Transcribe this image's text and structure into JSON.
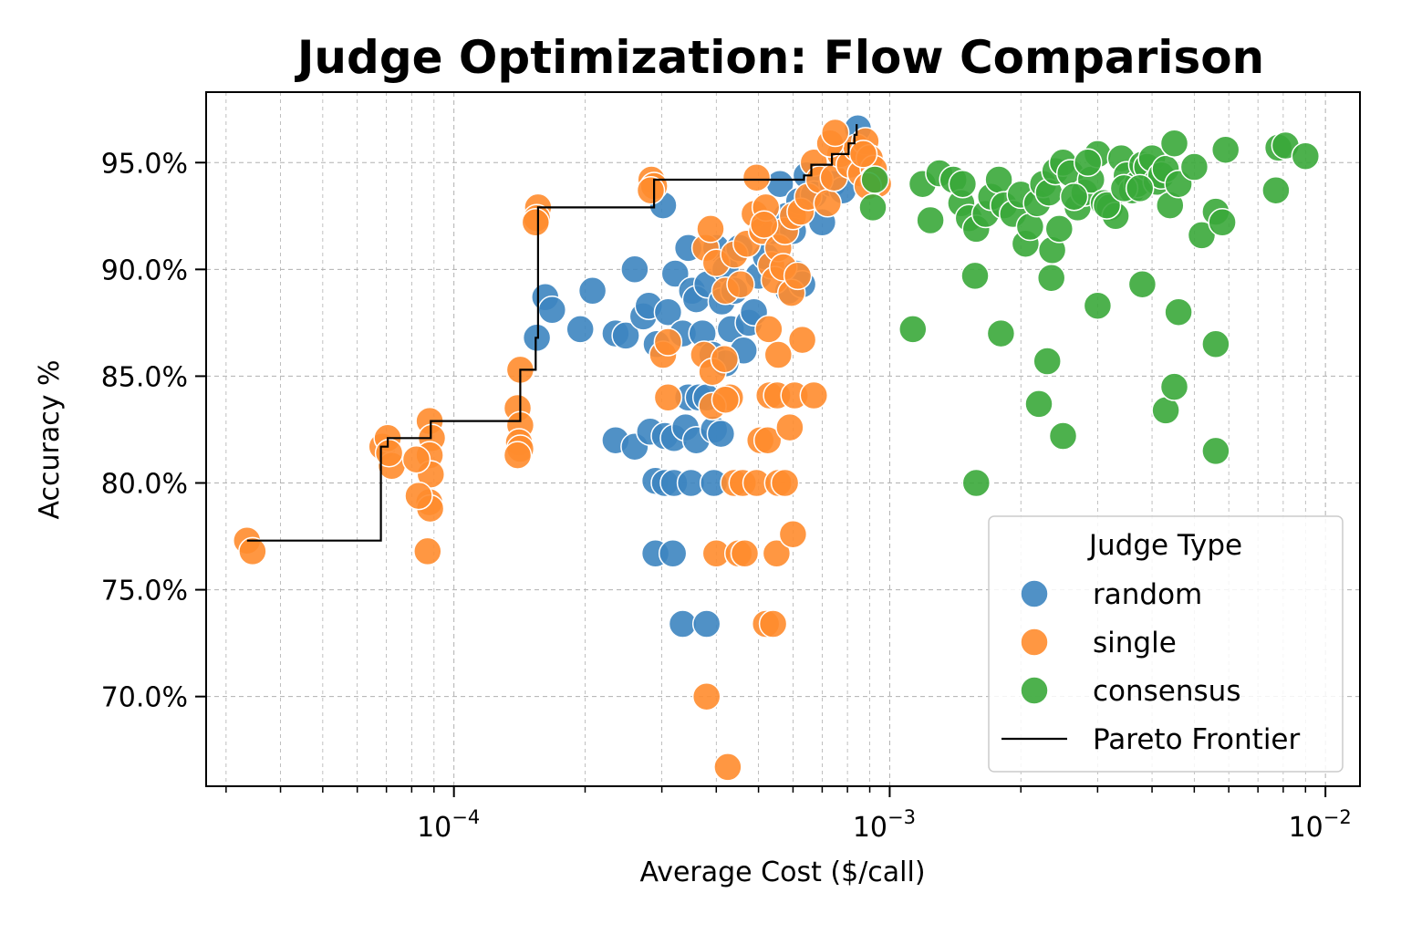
{
  "chart_data": {
    "type": "scatter",
    "title": "Judge Optimization: Flow Comparison",
    "xlabel": "Average Cost ($/call)",
    "ylabel": "Accuracy %",
    "xscale": "log",
    "xlim": [
      2.7e-05,
      0.012
    ],
    "ylim": [
      65.8,
      98.3
    ],
    "grid": true,
    "x_ticks": [
      {
        "value": 0.0001,
        "base": "10",
        "exp": "−4"
      },
      {
        "value": 0.001,
        "base": "10",
        "exp": "−3"
      },
      {
        "value": 0.01,
        "base": "10",
        "exp": "−2"
      }
    ],
    "y_ticks": [
      {
        "value": 70,
        "label": "70.0%"
      },
      {
        "value": 75,
        "label": "75.0%"
      },
      {
        "value": 80,
        "label": "80.0%"
      },
      {
        "value": 85,
        "label": "85.0%"
      },
      {
        "value": 90,
        "label": "90.0%"
      },
      {
        "value": 95,
        "label": "95.0%"
      }
    ],
    "legend": {
      "title": "Judge Type",
      "position": "lower-right",
      "entries": [
        {
          "label": "random",
          "color": "#3d85c0",
          "kind": "marker"
        },
        {
          "label": "single",
          "color": "#ff8c2e",
          "kind": "marker"
        },
        {
          "label": "consensus",
          "color": "#3aa83a",
          "kind": "marker"
        },
        {
          "label": "Pareto Frontier",
          "color": "#000000",
          "kind": "line"
        }
      ]
    },
    "series": [
      {
        "name": "random",
        "color": "#3d85c0",
        "points": [
          [
            0.000162,
            88.7
          ],
          [
            0.000168,
            88.1
          ],
          [
            0.000155,
            86.8
          ],
          [
            0.000195,
            87.2
          ],
          [
            0.000208,
            89.0
          ],
          [
            0.000235,
            87.0
          ],
          [
            0.000248,
            86.9
          ],
          [
            0.00026,
            90.0
          ],
          [
            0.000272,
            87.8
          ],
          [
            0.00028,
            88.3
          ],
          [
            0.000292,
            86.5
          ],
          [
            0.000302,
            93.0
          ],
          [
            0.00031,
            88.0
          ],
          [
            0.000322,
            89.8
          ],
          [
            0.000335,
            87.0
          ],
          [
            0.000345,
            91.0
          ],
          [
            0.000352,
            89.0
          ],
          [
            0.00036,
            88.6
          ],
          [
            0.000372,
            87.0
          ],
          [
            0.000382,
            89.3
          ],
          [
            0.000392,
            86.0
          ],
          [
            0.0004,
            91.0
          ],
          [
            0.000412,
            88.5
          ],
          [
            0.00042,
            90.0
          ],
          [
            0.000432,
            87.2
          ],
          [
            0.00044,
            89.0
          ],
          [
            0.000452,
            91.0
          ],
          [
            0.000462,
            86.2
          ],
          [
            0.000475,
            87.5
          ],
          [
            0.000488,
            88.0
          ],
          [
            0.0005,
            89.7
          ],
          [
            0.00052,
            90.6
          ],
          [
            0.00054,
            91.8
          ],
          [
            0.00056,
            94.0
          ],
          [
            0.00058,
            92.5
          ],
          [
            0.0006,
            91.8
          ],
          [
            0.00062,
            93.2
          ],
          [
            0.000645,
            94.4
          ],
          [
            0.00067,
            93.5
          ],
          [
            0.0007,
            92.2
          ],
          [
            0.00074,
            94.0
          ],
          [
            0.00078,
            93.7
          ],
          [
            0.00082,
            95.6
          ],
          [
            0.000845,
            96.6
          ],
          [
            0.00087,
            94.8
          ],
          [
            0.000585,
            89.0
          ],
          [
            0.00061,
            89.8
          ],
          [
            0.00063,
            89.3
          ],
          [
            0.000235,
            82.0
          ],
          [
            0.00026,
            81.7
          ],
          [
            0.000282,
            82.4
          ],
          [
            0.000305,
            82.2
          ],
          [
            0.00032,
            82.1
          ],
          [
            0.00034,
            82.6
          ],
          [
            0.00036,
            82.0
          ],
          [
            0.000395,
            82.5
          ],
          [
            0.00041,
            82.3
          ],
          [
            0.000345,
            84.0
          ],
          [
            0.000365,
            84.0
          ],
          [
            0.00038,
            84.0
          ],
          [
            0.00029,
            80.1
          ],
          [
            0.000305,
            80.0
          ],
          [
            0.00032,
            80.0
          ],
          [
            0.00035,
            80.0
          ],
          [
            0.000395,
            80.0
          ],
          [
            0.00029,
            76.7
          ],
          [
            0.000318,
            76.7
          ],
          [
            0.000335,
            73.4
          ],
          [
            0.00038,
            73.4
          ],
          [
            0.00042,
            85.6
          ]
        ]
      },
      {
        "name": "single",
        "color": "#ff8c2e",
        "points": [
          [
            3.35e-05,
            77.3
          ],
          [
            3.45e-05,
            76.8
          ],
          [
            6.85e-05,
            81.7
          ],
          [
            7.05e-05,
            82.1
          ],
          [
            7.2e-05,
            80.8
          ],
          [
            7.1e-05,
            81.4
          ],
          [
            8.8e-05,
            82.9
          ],
          [
            8.9e-05,
            82.1
          ],
          [
            8.8e-05,
            81.3
          ],
          [
            8.85e-05,
            80.4
          ],
          [
            8.78e-05,
            79.1
          ],
          [
            8.82e-05,
            78.8
          ],
          [
            8.7e-05,
            76.8
          ],
          [
            8.2e-05,
            81.1
          ],
          [
            8.3e-05,
            79.4
          ],
          [
            0.000142,
            85.3
          ],
          [
            0.00014,
            83.5
          ],
          [
            0.000142,
            82.7
          ],
          [
            0.000141,
            81.9
          ],
          [
            0.000142,
            81.6
          ],
          [
            0.00014,
            81.3
          ],
          [
            0.000156,
            92.9
          ],
          [
            0.000155,
            92.4
          ],
          [
            0.000154,
            92.2
          ],
          [
            0.000284,
            94.2
          ],
          [
            0.000288,
            93.9
          ],
          [
            0.000283,
            93.7
          ],
          [
            0.000378,
            91.0
          ],
          [
            0.000388,
            91.9
          ],
          [
            0.0004,
            90.3
          ],
          [
            0.00042,
            89.0
          ],
          [
            0.00044,
            90.7
          ],
          [
            0.000455,
            89.3
          ],
          [
            0.00047,
            91.2
          ],
          [
            0.00049,
            92.6
          ],
          [
            0.00051,
            91.8
          ],
          [
            0.00052,
            92.9
          ],
          [
            0.000535,
            90.2
          ],
          [
            0.000555,
            91.0
          ],
          [
            0.000575,
            91.8
          ],
          [
            0.0006,
            92.5
          ],
          [
            0.000625,
            92.7
          ],
          [
            0.00065,
            93.4
          ],
          [
            0.00067,
            95.0
          ],
          [
            0.00069,
            94.2
          ],
          [
            0.00072,
            93.1
          ],
          [
            0.000745,
            94.3
          ],
          [
            0.00077,
            95.4
          ],
          [
            0.00081,
            94.9
          ],
          [
            0.00084,
            95.7
          ],
          [
            0.00086,
            94.5
          ],
          [
            0.00088,
            96.0
          ],
          [
            0.0009,
            95.2
          ],
          [
            0.00092,
            94.7
          ],
          [
            0.00094,
            94.0
          ],
          [
            0.000918,
            94.2
          ],
          [
            0.00087,
            95.4
          ],
          [
            0.00073,
            95.9
          ],
          [
            0.00075,
            96.4
          ],
          [
            0.00089,
            93.9
          ],
          [
            0.000495,
            94.3
          ],
          [
            0.000515,
            92.1
          ],
          [
            0.000545,
            89.5
          ],
          [
            0.00057,
            90.1
          ],
          [
            0.000595,
            88.9
          ],
          [
            0.000615,
            89.7
          ],
          [
            0.000302,
            86.0
          ],
          [
            0.00031,
            86.6
          ],
          [
            0.000375,
            86.0
          ],
          [
            0.000392,
            85.2
          ],
          [
            0.000418,
            85.8
          ],
          [
            0.00043,
            84.0
          ],
          [
            0.000528,
            87.2
          ],
          [
            0.000555,
            86.0
          ],
          [
            0.00063,
            86.7
          ],
          [
            0.00031,
            84.0
          ],
          [
            0.000392,
            83.6
          ],
          [
            0.00042,
            83.9
          ],
          [
            0.00053,
            84.1
          ],
          [
            0.000552,
            84.1
          ],
          [
            0.000605,
            84.1
          ],
          [
            0.00067,
            84.1
          ],
          [
            0.000505,
            82.0
          ],
          [
            0.000525,
            82.0
          ],
          [
            0.00059,
            82.6
          ],
          [
            0.00044,
            80.0
          ],
          [
            0.00046,
            80.0
          ],
          [
            0.000495,
            80.0
          ],
          [
            0.000555,
            80.0
          ],
          [
            0.000575,
            80.0
          ],
          [
            0.0004,
            76.7
          ],
          [
            0.00045,
            76.7
          ],
          [
            0.000465,
            76.7
          ],
          [
            0.00055,
            76.7
          ],
          [
            0.0006,
            77.6
          ],
          [
            0.00052,
            73.4
          ],
          [
            0.00054,
            73.4
          ],
          [
            0.00038,
            70.0
          ],
          [
            0.000425,
            66.7
          ]
        ]
      },
      {
        "name": "consensus",
        "color": "#3aa83a",
        "points": [
          [
            0.000915,
            92.9
          ],
          [
            0.000925,
            94.2
          ],
          [
            0.00119,
            94.0
          ],
          [
            0.00124,
            92.3
          ],
          [
            0.0013,
            94.5
          ],
          [
            0.0014,
            94.2
          ],
          [
            0.00146,
            93.1
          ],
          [
            0.00152,
            92.4
          ],
          [
            0.00158,
            91.9
          ],
          [
            0.00166,
            92.6
          ],
          [
            0.00171,
            93.4
          ],
          [
            0.00178,
            94.2
          ],
          [
            0.00183,
            93.0
          ],
          [
            0.00192,
            92.6
          ],
          [
            0.002,
            93.5
          ],
          [
            0.00205,
            91.2
          ],
          [
            0.0021,
            92.0
          ],
          [
            0.00218,
            93.1
          ],
          [
            0.00225,
            94.0
          ],
          [
            0.00232,
            93.6
          ],
          [
            0.00236,
            90.9
          ],
          [
            0.0024,
            94.6
          ],
          [
            0.0025,
            95.0
          ],
          [
            0.0026,
            94.5
          ],
          [
            0.0027,
            92.9
          ],
          [
            0.0028,
            93.6
          ],
          [
            0.0029,
            94.2
          ],
          [
            0.003,
            95.4
          ],
          [
            0.0031,
            93.1
          ],
          [
            0.0032,
            92.9
          ],
          [
            0.0033,
            92.5
          ],
          [
            0.0034,
            95.2
          ],
          [
            0.0035,
            94.4
          ],
          [
            0.0036,
            93.7
          ],
          [
            0.0037,
            94.0
          ],
          [
            0.0038,
            94.9
          ],
          [
            0.0039,
            94.8
          ],
          [
            0.004,
            95.2
          ],
          [
            0.0041,
            94.1
          ],
          [
            0.0042,
            94.4
          ],
          [
            0.0043,
            94.7
          ],
          [
            0.0044,
            93.0
          ],
          [
            0.0045,
            95.9
          ],
          [
            0.0046,
            94.0
          ],
          [
            0.005,
            94.8
          ],
          [
            0.0052,
            91.6
          ],
          [
            0.0056,
            92.7
          ],
          [
            0.0058,
            92.2
          ],
          [
            0.0059,
            95.6
          ],
          [
            0.0078,
            95.7
          ],
          [
            0.0081,
            95.8
          ],
          [
            0.009,
            95.3
          ],
          [
            0.0077,
            93.7
          ],
          [
            0.00245,
            91.9
          ],
          [
            0.00265,
            93.4
          ],
          [
            0.00285,
            95.0
          ],
          [
            0.00315,
            93.0
          ],
          [
            0.00345,
            93.8
          ],
          [
            0.00375,
            93.8
          ],
          [
            0.00147,
            94.0
          ],
          [
            0.00113,
            87.2
          ],
          [
            0.00157,
            89.7
          ],
          [
            0.0018,
            87.0
          ],
          [
            0.00235,
            89.6
          ],
          [
            0.003,
            88.3
          ],
          [
            0.0038,
            89.3
          ],
          [
            0.0046,
            88.0
          ],
          [
            0.0056,
            86.5
          ],
          [
            0.0023,
            85.7
          ],
          [
            0.0022,
            83.7
          ],
          [
            0.0025,
            82.2
          ],
          [
            0.0043,
            83.4
          ],
          [
            0.0045,
            84.5
          ],
          [
            0.0056,
            81.5
          ],
          [
            0.00158,
            80.0
          ]
        ]
      }
    ],
    "pareto_frontier": [
      [
        3.35e-05,
        77.3
      ],
      [
        6.8e-05,
        77.3
      ],
      [
        6.8e-05,
        81.7
      ],
      [
        7.05e-05,
        81.7
      ],
      [
        7.05e-05,
        82.1
      ],
      [
        8.85e-05,
        82.1
      ],
      [
        8.85e-05,
        82.9
      ],
      [
        0.000142,
        82.9
      ],
      [
        0.000142,
        85.3
      ],
      [
        0.000154,
        85.3
      ],
      [
        0.000154,
        86.8
      ],
      [
        0.000156,
        86.8
      ],
      [
        0.000156,
        92.9
      ],
      [
        0.000288,
        92.9
      ],
      [
        0.000288,
        94.2
      ],
      [
        0.000636,
        94.2
      ],
      [
        0.000636,
        94.4
      ],
      [
        0.000661,
        94.4
      ],
      [
        0.000661,
        94.9
      ],
      [
        0.000737,
        94.9
      ],
      [
        0.000737,
        95.4
      ],
      [
        0.000805,
        95.4
      ],
      [
        0.000805,
        95.9
      ],
      [
        0.00083,
        95.9
      ],
      [
        0.00083,
        96.3
      ],
      [
        0.00084,
        96.3
      ],
      [
        0.00084,
        96.8
      ]
    ]
  }
}
